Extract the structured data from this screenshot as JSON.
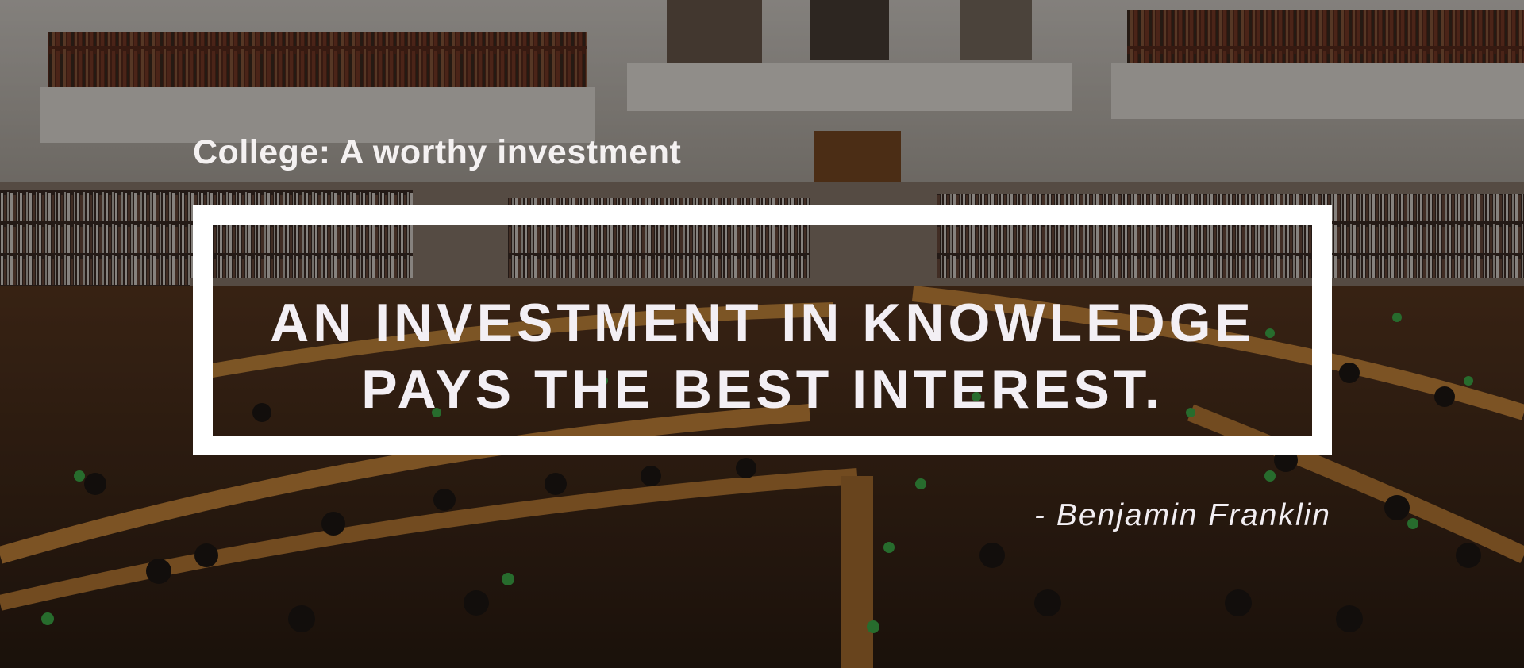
{
  "slide": {
    "subtitle": "College: A worthy investment",
    "quote_line_1": "AN INVESTMENT IN KNOWLEDGE",
    "quote_line_2": "PAYS THE BEST INTEREST.",
    "attribution": "- Benjamin Franklin"
  },
  "background": {
    "subject": "library reading room",
    "colors": {
      "wall": "#cfc9c2",
      "wood": "#6b3f1f",
      "lamp": "#3fae4a",
      "frame": "#ffffff",
      "text": "#f3eff4"
    }
  }
}
